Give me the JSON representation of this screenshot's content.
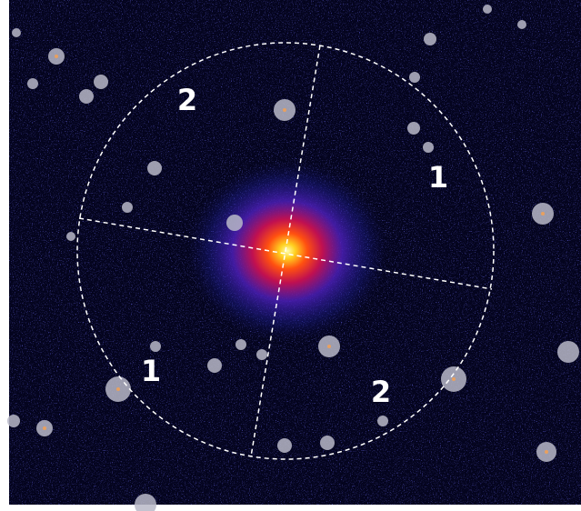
{
  "region_labels": [
    "2",
    "1",
    "1",
    "2"
  ]
}
